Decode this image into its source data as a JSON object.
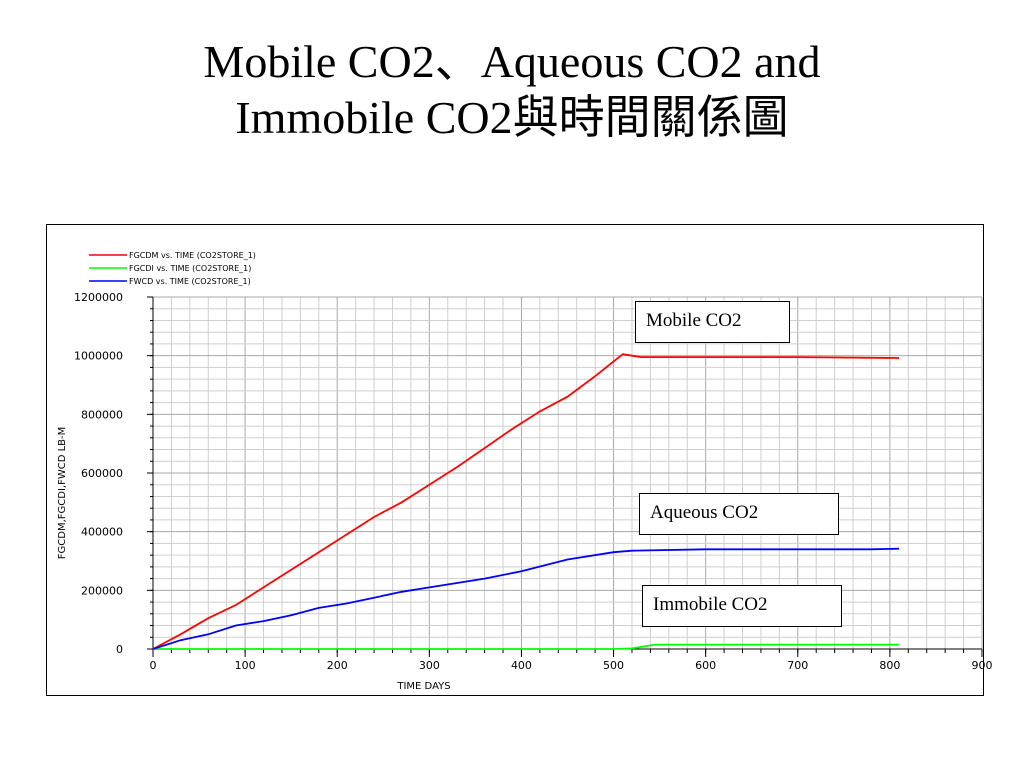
{
  "slide": {
    "title_line1": "Mobile CO2、Aqueous CO2 and",
    "title_line2": "Immobile CO2與時間關係圖"
  },
  "chart_data": {
    "type": "line",
    "xlabel": "TIME   DAYS",
    "ylabel": "FGCDM,FGCDI,FWCD   LB-M",
    "xlim": [
      0,
      900
    ],
    "ylim": [
      0,
      1200000
    ],
    "x_ticks": [
      "0",
      "100",
      "200",
      "300",
      "400",
      "500",
      "600",
      "700",
      "800",
      "900"
    ],
    "y_ticks": [
      "0",
      "200000",
      "400000",
      "600000",
      "800000",
      "1000000",
      "1200000"
    ],
    "grid": true,
    "legend_position": "top-left",
    "series": [
      {
        "name": "FGCDM vs. TIME (CO2STORE_1)",
        "color": "#ff0000",
        "x": [
          0,
          30,
          60,
          90,
          120,
          150,
          180,
          210,
          240,
          270,
          300,
          330,
          360,
          390,
          420,
          450,
          480,
          510,
          530,
          600,
          700,
          810
        ],
        "y": [
          0,
          50000,
          105000,
          150000,
          210000,
          270000,
          330000,
          390000,
          450000,
          500000,
          560000,
          620000,
          685000,
          750000,
          810000,
          860000,
          930000,
          1005000,
          995000,
          995000,
          995000,
          992000
        ]
      },
      {
        "name": "FGCDI  vs.  TIME (CO2STORE_1)",
        "color": "#00ff00",
        "x": [
          0,
          100,
          200,
          300,
          400,
          500,
          520,
          545,
          600,
          700,
          810
        ],
        "y": [
          0,
          0,
          0,
          0,
          0,
          0,
          2000,
          15000,
          15000,
          15000,
          15000
        ]
      },
      {
        "name": "FWCD  vs.  TIME (CO2STORE_1)",
        "color": "#0000ff",
        "x": [
          0,
          30,
          60,
          90,
          120,
          150,
          180,
          210,
          240,
          270,
          300,
          330,
          360,
          400,
          450,
          500,
          520,
          600,
          700,
          780,
          810
        ],
        "y": [
          0,
          30000,
          50000,
          80000,
          95000,
          115000,
          140000,
          155000,
          175000,
          195000,
          210000,
          225000,
          240000,
          265000,
          305000,
          330000,
          335000,
          340000,
          340000,
          340000,
          342000
        ]
      }
    ],
    "annotations": [
      "Mobile CO2",
      "Aqueous CO2",
      "Immobile CO2"
    ]
  }
}
